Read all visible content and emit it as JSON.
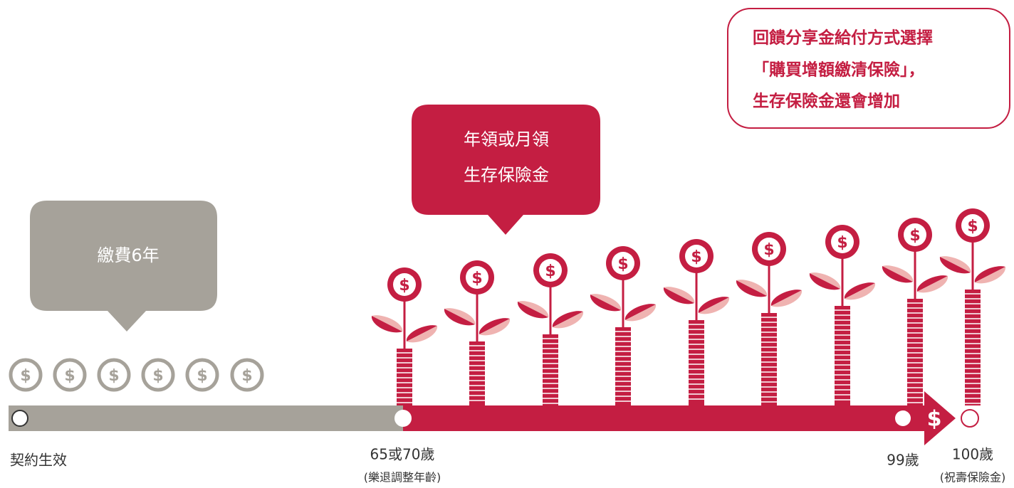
{
  "bubbles": {
    "payment": "繳費6年",
    "annuity": [
      "年領或月領",
      "生存保險金"
    ],
    "note": [
      "回饋分享金給付方式選擇",
      "「購買增額繳清保險」，",
      "生存保險金還會增加"
    ]
  },
  "timeline": {
    "start": "契約生效",
    "retire": "65或70歲",
    "retire_note": "(樂退調整年齡)",
    "age99": "99歲",
    "age100": "100歲",
    "age100_note": "(祝壽保險金)"
  },
  "currency_symbol": "$"
}
